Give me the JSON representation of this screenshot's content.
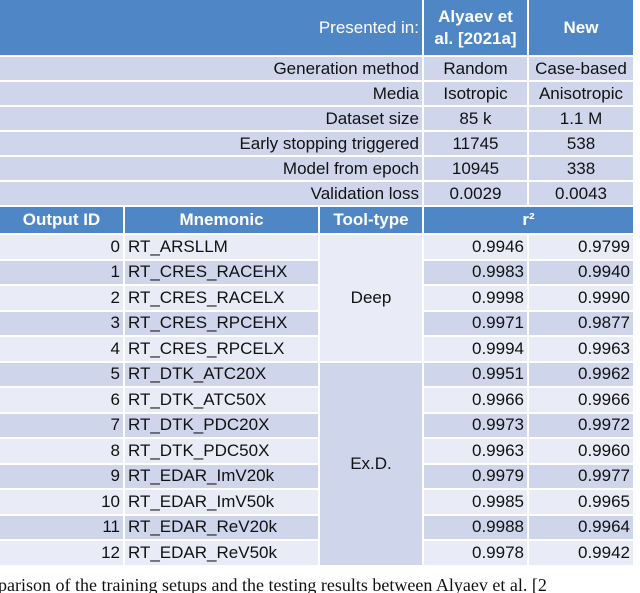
{
  "header": {
    "presented_in": "Presented in:",
    "source": "Alyaev et al. [2021a]",
    "new": "New"
  },
  "settings": [
    {
      "label": "Generation method",
      "source": "Random",
      "new": "Case-based"
    },
    {
      "label": "Media",
      "source": "Isotropic",
      "new": "Anisotropic"
    },
    {
      "label": "Dataset size",
      "source": "85 k",
      "new": "1.1 M"
    },
    {
      "label": "Early stopping triggered",
      "source": "11745",
      "new": "538"
    },
    {
      "label": "Model from epoch",
      "source": "10945",
      "new": "338"
    },
    {
      "label": "Validation loss",
      "source": "0.0029",
      "new": "0.0043"
    }
  ],
  "columns": [
    "Output ID",
    "Mnemonic",
    "Tool-type",
    "r²"
  ],
  "groups": [
    {
      "tool_type": "Deep",
      "rows": [
        {
          "id": 0,
          "mnemonic": "RT_ARSLLM",
          "source": "0.9946",
          "new": "0.9799"
        },
        {
          "id": 1,
          "mnemonic": "RT_CRES_RACEHX",
          "source": "0.9983",
          "new": "0.9940"
        },
        {
          "id": 2,
          "mnemonic": "RT_CRES_RACELX",
          "source": "0.9998",
          "new": "0.9990"
        },
        {
          "id": 3,
          "mnemonic": "RT_CRES_RPCEHX",
          "source": "0.9971",
          "new": "0.9877"
        },
        {
          "id": 4,
          "mnemonic": "RT_CRES_RPCELX",
          "source": "0.9994",
          "new": "0.9963"
        }
      ]
    },
    {
      "tool_type": "Ex.D.",
      "rows": [
        {
          "id": 5,
          "mnemonic": "RT_DTK_ATC20X",
          "source": "0.9951",
          "new": "0.9962"
        },
        {
          "id": 6,
          "mnemonic": "RT_DTK_ATC50X",
          "source": "0.9966",
          "new": "0.9966"
        },
        {
          "id": 7,
          "mnemonic": "RT_DTK_PDC20X",
          "source": "0.9973",
          "new": "0.9972"
        },
        {
          "id": 8,
          "mnemonic": "RT_DTK_PDC50X",
          "source": "0.9963",
          "new": "0.9960"
        },
        {
          "id": 9,
          "mnemonic": "RT_EDAR_ImV20k",
          "source": "0.9979",
          "new": "0.9977"
        },
        {
          "id": 10,
          "mnemonic": "RT_EDAR_ImV50k",
          "source": "0.9985",
          "new": "0.9965"
        },
        {
          "id": 11,
          "mnemonic": "RT_EDAR_ReV20k",
          "source": "0.9988",
          "new": "0.9964"
        },
        {
          "id": 12,
          "mnemonic": "RT_EDAR_ReV50k",
          "source": "0.9978",
          "new": "0.9942"
        }
      ]
    }
  ],
  "caption": "parison of the training setups and the testing results between Alyaev et al. [2"
}
